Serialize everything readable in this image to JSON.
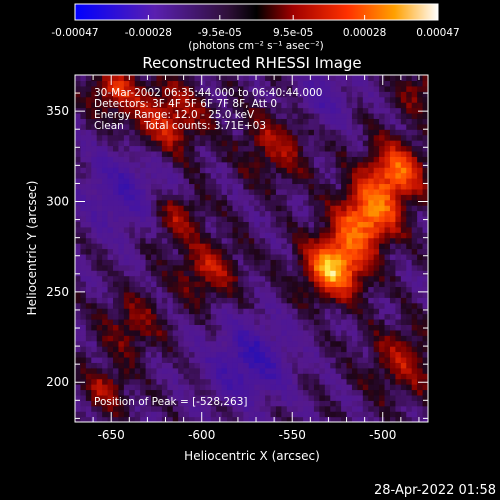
{
  "chart_data": {
    "type": "heatmap",
    "title": "Reconstructed RHESSI Image",
    "xlabel": "Heliocentric X (arcsec)",
    "ylabel": "Heliocentric Y (arcsec)",
    "xlim": [
      -670,
      -475
    ],
    "ylim": [
      178,
      370
    ],
    "x_ticks": [
      -650,
      -600,
      -550,
      -500
    ],
    "y_ticks": [
      200,
      250,
      300,
      350
    ],
    "colormap": "blue-purple-red-yellow-white",
    "colorbar": {
      "range": [
        -0.00047,
        0.00047
      ],
      "tick_labels": [
        "-0.00047",
        "-0.00028",
        "-9.5e-05",
        "9.5e-05",
        "0.00028",
        "0.00047"
      ],
      "unit_label": "(photons cm⁻² s⁻¹ asec⁻²)"
    },
    "annotations": {
      "time_range": "30-Mar-2002 06:35:44.000 to 06:40:44.000",
      "detectors": "Detectors: 3F 4F 5F 6F 7F 8F, Att 0",
      "energy": "Energy Range: 12.0 - 25.0 keV",
      "method": "Clean",
      "total_counts": "Total counts: 3.71E+03",
      "peak": "Position of Peak = [-528,263]"
    },
    "peak": {
      "x": -528,
      "y": 263
    },
    "sources": [
      {
        "x": -528,
        "y": 263,
        "amp": 1.0,
        "sigma": 12
      },
      {
        "x": -510,
        "y": 290,
        "amp": 0.85,
        "sigma": 12
      },
      {
        "x": -495,
        "y": 315,
        "amp": 0.75,
        "sigma": 12
      },
      {
        "x": -620,
        "y": 345,
        "amp": 0.55,
        "sigma": 14
      },
      {
        "x": -650,
        "y": 360,
        "amp": 0.5,
        "sigma": 10
      },
      {
        "x": -598,
        "y": 260,
        "amp": 0.45,
        "sigma": 12
      },
      {
        "x": -615,
        "y": 290,
        "amp": 0.4,
        "sigma": 10
      },
      {
        "x": -640,
        "y": 230,
        "amp": 0.35,
        "sigma": 12
      },
      {
        "x": -655,
        "y": 195,
        "amp": 0.4,
        "sigma": 9
      },
      {
        "x": -560,
        "y": 330,
        "amp": 0.4,
        "sigma": 14
      },
      {
        "x": -490,
        "y": 210,
        "amp": 0.4,
        "sigma": 14
      },
      {
        "x": -480,
        "y": 360,
        "amp": 0.35,
        "sigma": 9
      },
      {
        "x": -575,
        "y": 210,
        "amp": -0.5,
        "sigma": 16
      },
      {
        "x": -645,
        "y": 305,
        "amp": -0.4,
        "sigma": 16
      },
      {
        "x": -535,
        "y": 355,
        "amp": -0.3,
        "sigma": 12
      }
    ]
  },
  "footer": {
    "timestamp": "28-Apr-2022 01:58"
  }
}
